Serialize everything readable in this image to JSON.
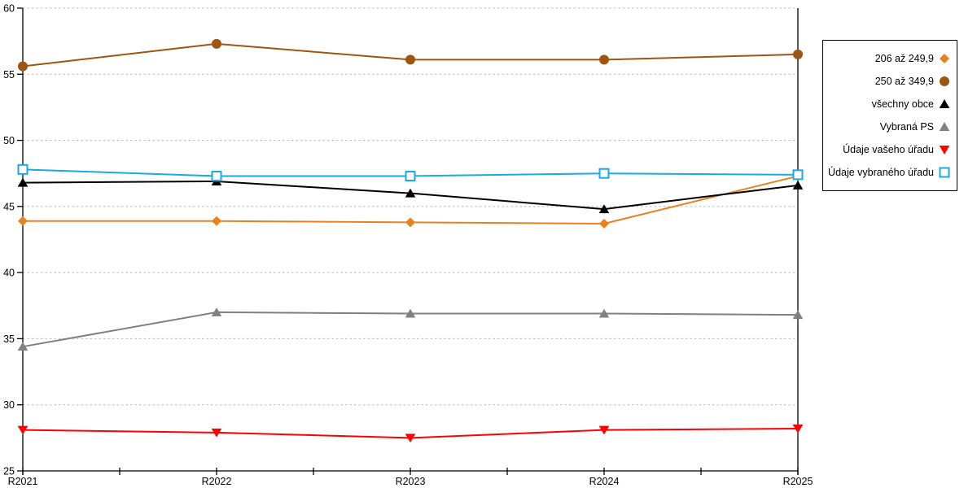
{
  "chart_data": {
    "type": "line",
    "title": "",
    "xlabel": "",
    "ylabel": "",
    "x": [
      "R2021",
      "R2022",
      "R2023",
      "R2024",
      "R2025"
    ],
    "y_tick_labels": [
      "60",
      "55",
      "50",
      "45",
      "40",
      "35",
      "30",
      "25"
    ],
    "ylim": [
      25,
      60
    ],
    "ytick_step": 5,
    "grid": "horizontal-dashed",
    "gridline_color": "#b8b8b8",
    "axis_color": "#000000",
    "legend_position": "right",
    "series": [
      {
        "name": "206 až 249,9",
        "marker": "diamond",
        "color": "#E8821E",
        "values": [
          43.9,
          43.9,
          43.8,
          43.7,
          47.3
        ]
      },
      {
        "name": "250 až 349,9",
        "marker": "circle",
        "color": "#9C5611",
        "values": [
          55.6,
          57.3,
          56.1,
          56.1,
          56.5
        ]
      },
      {
        "name": "všechny obce",
        "marker": "triangle-up",
        "color": "#000000",
        "values": [
          46.8,
          46.9,
          46.0,
          44.8,
          46.6
        ]
      },
      {
        "name": "Vybraná PS",
        "marker": "triangle-up",
        "color": "#808080",
        "values": [
          34.4,
          37.0,
          36.9,
          36.9,
          36.8
        ]
      },
      {
        "name": "Údaje vašeho úřadu",
        "marker": "triangle-down",
        "color": "#FF0000",
        "values": [
          28.1,
          27.9,
          27.5,
          28.1,
          28.2
        ]
      },
      {
        "name": "Údaje vybraného úřadu",
        "marker": "square-open",
        "color": "#1BA9E2",
        "values": [
          47.8,
          47.3,
          47.3,
          47.5,
          47.4
        ]
      }
    ]
  }
}
